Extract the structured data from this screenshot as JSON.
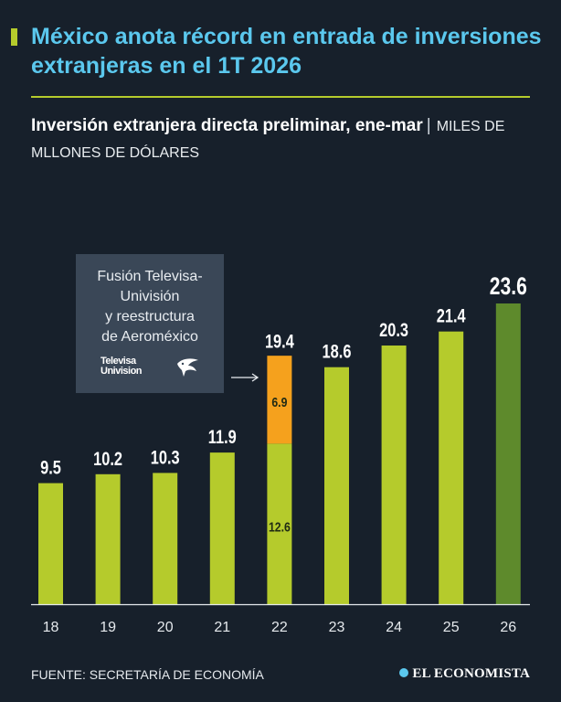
{
  "header": {
    "title": "México anota récord en entrada de inversiones extranjeras en el 1T 2026",
    "subtitle_main": "Inversión extranjera directa preliminar, ene-mar",
    "subtitle_sep": "|",
    "subtitle_unit": "MILES DE MLLONES DE DÓLARES"
  },
  "annotation": {
    "text": "Fusión Televisa-\nUnivisión\ny reestructura\nde Aeroméxico",
    "logo_televisa": "Televisa\nUnivision",
    "logo_icon": "aeromexico-eagle-icon"
  },
  "colors": {
    "background": "#17202b",
    "title": "#5bc8ee",
    "bar": "#b5cb2c",
    "bar_highlight": "#5e8a2c",
    "segment_extra": "#f5a11d",
    "annotation_box": "#3a4757"
  },
  "chart_data": {
    "type": "bar",
    "stacked": true,
    "categories": [
      "18",
      "19",
      "20",
      "21",
      "22",
      "23",
      "24",
      "25",
      "26"
    ],
    "values": [
      9.5,
      10.2,
      10.3,
      11.9,
      19.4,
      18.6,
      20.3,
      21.4,
      23.6
    ],
    "value_labels": [
      "9.5",
      "10.2",
      "10.3",
      "11.9",
      "19.4",
      "18.6",
      "20.3",
      "21.4",
      "23.6"
    ],
    "segments": [
      {
        "category": "22",
        "values": [
          12.6,
          6.9
        ],
        "labels": [
          "12.6",
          "6.9"
        ]
      }
    ],
    "highlight_category": "26",
    "ylim": [
      0,
      23.6
    ],
    "grid": false,
    "legend": "none"
  },
  "footer": {
    "source": "FUENTE: SECRETARÍA DE ECONOMÍA",
    "brand": "EL ECONOMISTA"
  }
}
